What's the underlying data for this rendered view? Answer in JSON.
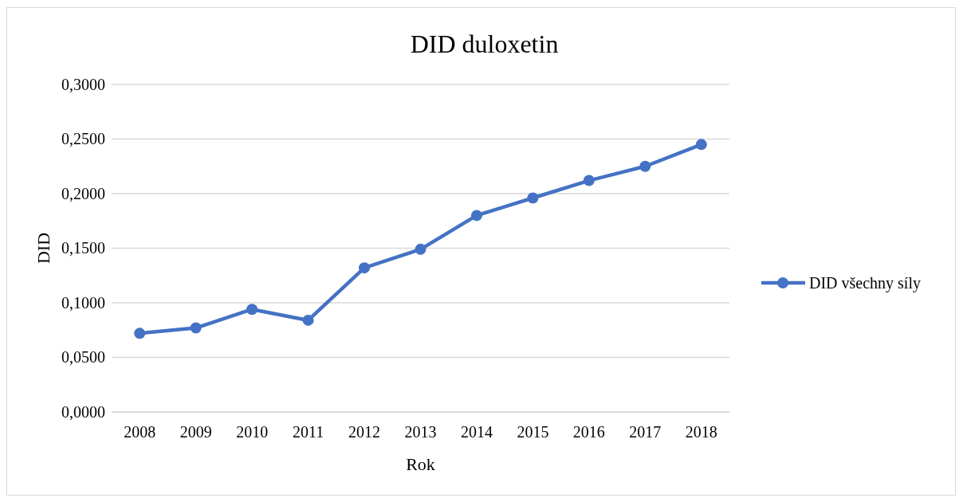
{
  "chart_data": {
    "type": "line",
    "title": "DID duloxetin",
    "xlabel": "Rok",
    "ylabel": "DID",
    "categories": [
      "2008",
      "2009",
      "2010",
      "2011",
      "2012",
      "2013",
      "2014",
      "2015",
      "2016",
      "2017",
      "2018"
    ],
    "series": [
      {
        "name": "DID všechny síly",
        "color": "#4472c4",
        "values": [
          0.072,
          0.077,
          0.094,
          0.084,
          0.132,
          0.149,
          0.18,
          0.196,
          0.212,
          0.225,
          0.245
        ]
      }
    ],
    "ylim": [
      0,
      0.3
    ],
    "yticks": [
      {
        "value": 0,
        "label": "0,0000"
      },
      {
        "value": 0.05,
        "label": "0,0500"
      },
      {
        "value": 0.1,
        "label": "0,1000"
      },
      {
        "value": 0.15,
        "label": "0,1500"
      },
      {
        "value": 0.2,
        "label": "0,2000"
      },
      {
        "value": 0.25,
        "label": "0,2500"
      },
      {
        "value": 0.3,
        "label": "0,3000"
      }
    ],
    "grid": "y",
    "legend": "right",
    "marker": "circle",
    "line_style": "solid"
  }
}
